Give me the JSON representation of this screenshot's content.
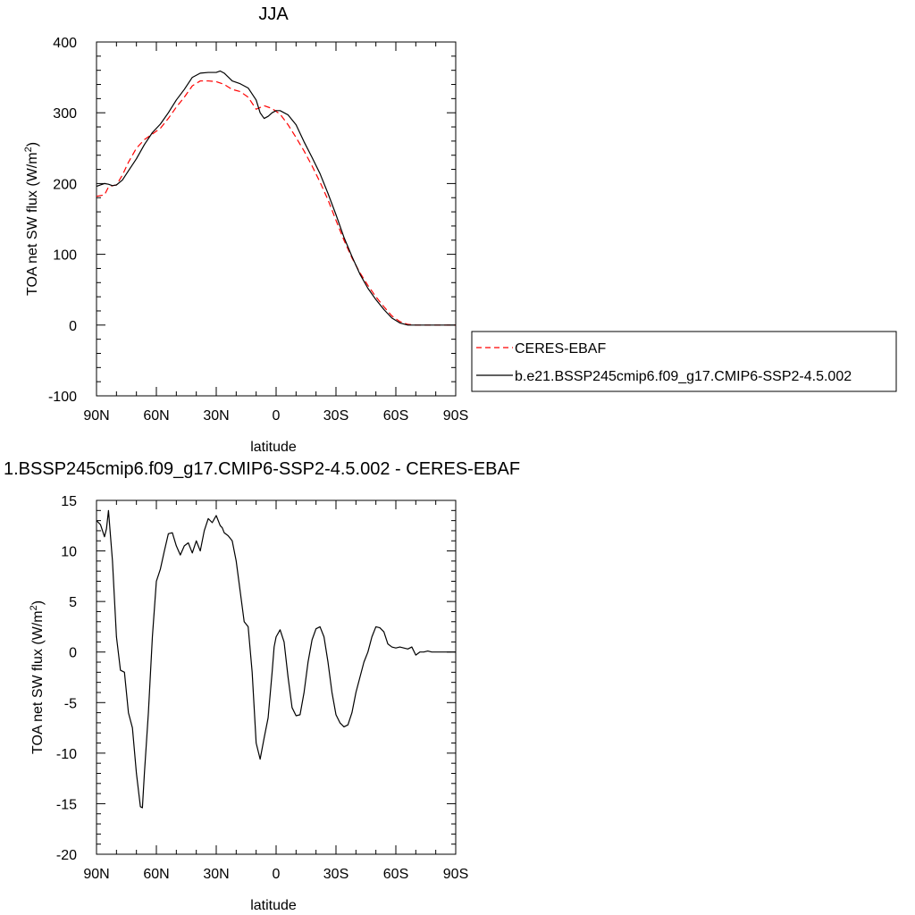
{
  "chart_data": [
    {
      "type": "line",
      "title": "JJA",
      "xlabel": "latitude",
      "ylabel": "TOA net SW flux (W/m",
      "ylabel_sup": "2",
      "ylabel_end": ")",
      "xlim": [
        90,
        -90
      ],
      "ylim": [
        -100,
        400
      ],
      "xticks": [
        90,
        60,
        30,
        0,
        -30,
        -60,
        -90
      ],
      "xticklabels": [
        "90N",
        "60N",
        "30N",
        "0",
        "30S",
        "60S",
        "90S"
      ],
      "yticks": [
        -100,
        0,
        100,
        200,
        300,
        400
      ],
      "yticklabels": [
        "-100",
        "0",
        "100",
        "200",
        "300",
        "400"
      ],
      "grid": false,
      "legend_placement": "right",
      "series": [
        {
          "name": "CERES-EBAF",
          "color": "#ff0000",
          "dash": "dashed",
          "x": [
            90,
            86,
            84,
            82,
            80,
            77,
            74,
            70,
            66,
            62,
            58,
            54,
            50,
            46,
            42,
            38,
            34,
            30,
            26,
            22,
            18,
            14,
            10,
            6,
            2,
            -2,
            -6,
            -10,
            -14,
            -18,
            -22,
            -26,
            -30,
            -34,
            -38,
            -42,
            -46,
            -50,
            -54,
            -58,
            -62,
            -66,
            -70,
            -74,
            -78,
            -82,
            -86,
            -90
          ],
          "values": [
            182,
            184,
            195,
            197,
            198,
            212,
            230,
            250,
            262,
            270,
            278,
            292,
            308,
            322,
            338,
            345,
            345,
            344,
            340,
            333,
            330,
            322,
            305,
            310,
            306,
            298,
            283,
            265,
            246,
            225,
            202,
            177,
            148,
            120,
            95,
            74,
            56,
            40,
            26,
            13,
            5,
            1,
            0,
            0,
            0,
            0,
            0,
            0
          ]
        },
        {
          "name": "b.e21.BSSP245cmip6.f09_g17.CMIP6-SSP2-4.5.002",
          "color": "#000000",
          "dash": "solid",
          "x": [
            90,
            88,
            86,
            84,
            82,
            80,
            77,
            74,
            70,
            66,
            62,
            58,
            54,
            50,
            46,
            42,
            38,
            34,
            30,
            28,
            26,
            22,
            18,
            14,
            10,
            8,
            6,
            4,
            2,
            0,
            -2,
            -6,
            -10,
            -14,
            -18,
            -22,
            -26,
            -30,
            -34,
            -38,
            -42,
            -46,
            -50,
            -54,
            -58,
            -62,
            -66,
            -70,
            -74,
            -78,
            -82,
            -86,
            -90
          ],
          "values": [
            196,
            198,
            200,
            199,
            197,
            198,
            205,
            218,
            235,
            255,
            272,
            284,
            300,
            318,
            333,
            350,
            356,
            357,
            357,
            359,
            356,
            345,
            341,
            335,
            318,
            300,
            292,
            295,
            300,
            303,
            303,
            297,
            283,
            259,
            237,
            214,
            186,
            156,
            124,
            97,
            72,
            52,
            36,
            22,
            10,
            3,
            0,
            0,
            0,
            0,
            0,
            0,
            0
          ]
        }
      ]
    },
    {
      "type": "line",
      "title": "1.BSSP245cmip6.f09_g17.CMIP6-SSP2-4.5.002 - CERES-EBAF",
      "xlabel": "latitude",
      "ylabel": "TOA net SW flux (W/m",
      "ylabel_sup": "2",
      "ylabel_end": ")",
      "xlim": [
        90,
        -90
      ],
      "ylim": [
        -20,
        15
      ],
      "xticks": [
        90,
        60,
        30,
        0,
        -30,
        -60,
        -90
      ],
      "xticklabels": [
        "90N",
        "60N",
        "30N",
        "0",
        "30S",
        "60S",
        "90S"
      ],
      "yticks": [
        -20,
        -15,
        -10,
        -5,
        0,
        5,
        10,
        15
      ],
      "yticklabels": [
        "-20",
        "-15",
        "-10",
        "-5",
        "0",
        "5",
        "10",
        "15"
      ],
      "grid": false,
      "series": [
        {
          "color": "#000000",
          "dash": "solid",
          "x": [
            90,
            88,
            86,
            85,
            84,
            82,
            80,
            78,
            76,
            74,
            72,
            70,
            68,
            67,
            66,
            64,
            62,
            60,
            58,
            56,
            54,
            52,
            50,
            48,
            46,
            44,
            42,
            40,
            38,
            36,
            34,
            32,
            30,
            28,
            27,
            26,
            24,
            22,
            20,
            18,
            16,
            14,
            12,
            10,
            8,
            6,
            4,
            2,
            1,
            0,
            -2,
            -4,
            -6,
            -8,
            -10,
            -12,
            -14,
            -16,
            -18,
            -20,
            -22,
            -24,
            -26,
            -28,
            -30,
            -32,
            -34,
            -36,
            -38,
            -40,
            -42,
            -44,
            -46,
            -48,
            -50,
            -52,
            -54,
            -56,
            -58,
            -60,
            -62,
            -64,
            -66,
            -68,
            -70,
            -72,
            -74,
            -76,
            -78,
            -79,
            -80,
            -82,
            -84,
            -86,
            -88,
            -90
          ],
          "values": [
            13.0,
            12.6,
            11.4,
            12.2,
            14.0,
            9.0,
            1.5,
            -1.8,
            -2.0,
            -6.0,
            -7.5,
            -12.0,
            -15.3,
            -15.4,
            -12.0,
            -6.0,
            1.5,
            7.0,
            8.2,
            10.0,
            11.7,
            11.8,
            10.5,
            9.6,
            10.5,
            10.8,
            9.8,
            11.0,
            10.0,
            12.0,
            13.2,
            12.8,
            13.5,
            12.5,
            12.3,
            11.8,
            11.5,
            11.0,
            9.0,
            6.0,
            3.0,
            2.5,
            -2.0,
            -9.0,
            -10.6,
            -8.5,
            -6.5,
            -2.0,
            0.5,
            1.5,
            2.2,
            1.0,
            -2.5,
            -5.5,
            -6.3,
            -6.2,
            -4.0,
            -1.0,
            1.2,
            2.3,
            2.5,
            1.5,
            -1.0,
            -4.0,
            -6.2,
            -7.0,
            -7.4,
            -7.2,
            -6.0,
            -4.0,
            -2.5,
            -1.0,
            0.0,
            1.5,
            2.5,
            2.4,
            2.0,
            0.8,
            0.5,
            0.4,
            0.5,
            0.4,
            0.3,
            0.5,
            -0.3,
            0.0,
            0.0,
            0.1,
            0.0,
            0.0,
            0.0,
            0.0,
            0.0,
            0.0,
            0.0,
            0.0
          ]
        }
      ]
    }
  ]
}
